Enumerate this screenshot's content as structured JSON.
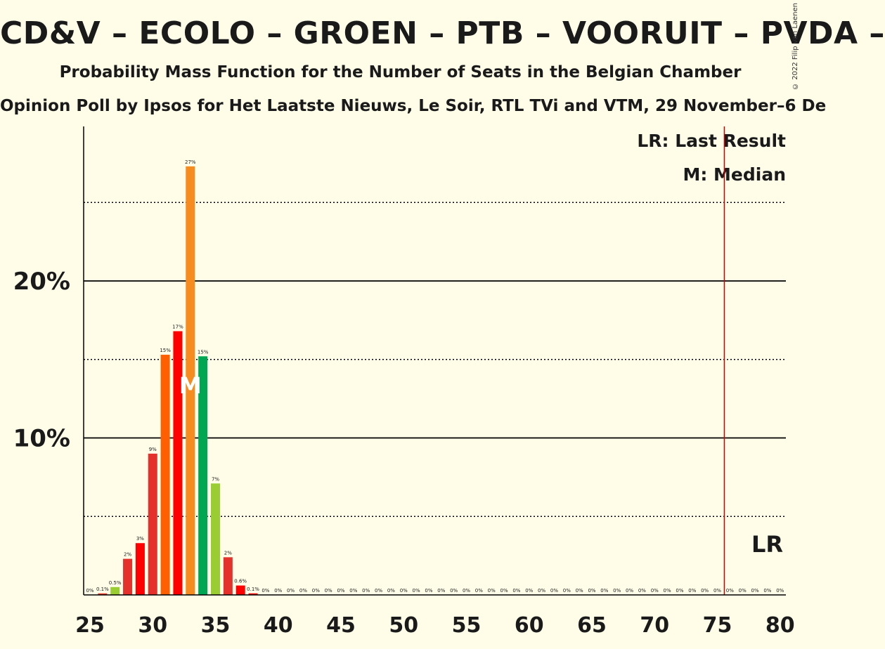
{
  "title": "CD&V – ECOLO – GROEN – PTB – VOORUIT – PVDA –",
  "subtitle": "Probability Mass Function for the Number of Seats in the Belgian Chamber",
  "source": "Opinion Poll by Ipsos for Het Laatste Nieuws, Le Soir, RTL TVi and VTM, 29 November–6 De",
  "copyright": "© 2022 Filip van Laenen",
  "legend": {
    "last_result": "LR: Last Result",
    "median": "M: Median"
  },
  "markers": {
    "median_letter": "M",
    "last_result_letter": "LR"
  },
  "chart_data": {
    "type": "bar",
    "xlim": [
      25,
      80
    ],
    "ylim": [
      0,
      30
    ],
    "y_ticks": [
      {
        "value": 10,
        "label": "10%"
      },
      {
        "value": 20,
        "label": "20%"
      }
    ],
    "y_dotted": [
      5,
      15,
      25
    ],
    "x_ticks": [
      25,
      30,
      35,
      40,
      45,
      50,
      55,
      60,
      65,
      70,
      75,
      80
    ],
    "median": 33,
    "last_result": 76,
    "bars": [
      {
        "x": 25,
        "value": 0,
        "label": "0%",
        "color": "#ef3b2c"
      },
      {
        "x": 26,
        "value": 0.1,
        "label": "0.1%",
        "color": "#ef3b2c"
      },
      {
        "x": 27,
        "value": 0.5,
        "label": "0.5%",
        "color": "#9ACD32"
      },
      {
        "x": 28,
        "value": 2.3,
        "label": "2%",
        "color": "#E4312B"
      },
      {
        "x": 29,
        "value": 3.3,
        "label": "3%",
        "color": "#FF0000"
      },
      {
        "x": 30,
        "value": 9.0,
        "label": "9%",
        "color": "#E4312B"
      },
      {
        "x": 31,
        "value": 15.3,
        "label": "15%",
        "color": "#FF5F00"
      },
      {
        "x": 32,
        "value": 16.8,
        "label": "17%",
        "color": "#FF0000"
      },
      {
        "x": 33,
        "value": 27.3,
        "label": "27%",
        "color": "#F68B1F"
      },
      {
        "x": 34,
        "value": 15.2,
        "label": "15%",
        "color": "#00A651"
      },
      {
        "x": 35,
        "value": 7.1,
        "label": "7%",
        "color": "#9ACD32"
      },
      {
        "x": 36,
        "value": 2.4,
        "label": "2%",
        "color": "#E4312B"
      },
      {
        "x": 37,
        "value": 0.6,
        "label": "0.6%",
        "color": "#FF0000"
      },
      {
        "x": 38,
        "value": 0.1,
        "label": "0.1%",
        "color": "#FF0000"
      },
      {
        "x": 39,
        "value": 0,
        "label": "0%",
        "color": "#FF0000"
      },
      {
        "x": 40,
        "value": 0,
        "label": "0%",
        "color": "#FF0000"
      },
      {
        "x": 41,
        "value": 0,
        "label": "0%",
        "color": "#FF0000"
      },
      {
        "x": 42,
        "value": 0,
        "label": "0%",
        "color": "#FF0000"
      },
      {
        "x": 43,
        "value": 0,
        "label": "0%",
        "color": "#FF0000"
      },
      {
        "x": 44,
        "value": 0,
        "label": "0%",
        "color": "#FF0000"
      },
      {
        "x": 45,
        "value": 0,
        "label": "0%",
        "color": "#FF0000"
      },
      {
        "x": 46,
        "value": 0,
        "label": "0%",
        "color": "#FF0000"
      },
      {
        "x": 47,
        "value": 0,
        "label": "0%",
        "color": "#FF0000"
      },
      {
        "x": 48,
        "value": 0,
        "label": "0%",
        "color": "#FF0000"
      },
      {
        "x": 49,
        "value": 0,
        "label": "0%",
        "color": "#FF0000"
      },
      {
        "x": 50,
        "value": 0,
        "label": "0%",
        "color": "#FF0000"
      },
      {
        "x": 51,
        "value": 0,
        "label": "0%",
        "color": "#FF0000"
      },
      {
        "x": 52,
        "value": 0,
        "label": "0%",
        "color": "#FF0000"
      },
      {
        "x": 53,
        "value": 0,
        "label": "0%",
        "color": "#FF0000"
      },
      {
        "x": 54,
        "value": 0,
        "label": "0%",
        "color": "#FF0000"
      },
      {
        "x": 55,
        "value": 0,
        "label": "0%",
        "color": "#FF0000"
      },
      {
        "x": 56,
        "value": 0,
        "label": "0%",
        "color": "#FF0000"
      },
      {
        "x": 57,
        "value": 0,
        "label": "0%",
        "color": "#FF0000"
      },
      {
        "x": 58,
        "value": 0,
        "label": "0%",
        "color": "#FF0000"
      },
      {
        "x": 59,
        "value": 0,
        "label": "0%",
        "color": "#FF0000"
      },
      {
        "x": 60,
        "value": 0,
        "label": "0%",
        "color": "#FF0000"
      },
      {
        "x": 61,
        "value": 0,
        "label": "0%",
        "color": "#FF0000"
      },
      {
        "x": 62,
        "value": 0,
        "label": "0%",
        "color": "#FF0000"
      },
      {
        "x": 63,
        "value": 0,
        "label": "0%",
        "color": "#FF0000"
      },
      {
        "x": 64,
        "value": 0,
        "label": "0%",
        "color": "#FF0000"
      },
      {
        "x": 65,
        "value": 0,
        "label": "0%",
        "color": "#FF0000"
      },
      {
        "x": 66,
        "value": 0,
        "label": "0%",
        "color": "#FF0000"
      },
      {
        "x": 67,
        "value": 0,
        "label": "0%",
        "color": "#FF0000"
      },
      {
        "x": 68,
        "value": 0,
        "label": "0%",
        "color": "#FF0000"
      },
      {
        "x": 69,
        "value": 0,
        "label": "0%",
        "color": "#FF0000"
      },
      {
        "x": 70,
        "value": 0,
        "label": "0%",
        "color": "#FF0000"
      },
      {
        "x": 71,
        "value": 0,
        "label": "0%",
        "color": "#FF0000"
      },
      {
        "x": 72,
        "value": 0,
        "label": "0%",
        "color": "#FF0000"
      },
      {
        "x": 73,
        "value": 0,
        "label": "0%",
        "color": "#FF0000"
      },
      {
        "x": 74,
        "value": 0,
        "label": "0%",
        "color": "#FF0000"
      },
      {
        "x": 75,
        "value": 0,
        "label": "0%",
        "color": "#FF0000"
      },
      {
        "x": 76,
        "value": 0,
        "label": "0%",
        "color": "#FF0000"
      },
      {
        "x": 77,
        "value": 0,
        "label": "0%",
        "color": "#FF0000"
      },
      {
        "x": 78,
        "value": 0,
        "label": "0%",
        "color": "#FF0000"
      },
      {
        "x": 79,
        "value": 0,
        "label": "0%",
        "color": "#FF0000"
      },
      {
        "x": 80,
        "value": 0,
        "label": "0%",
        "color": "#FF0000"
      }
    ]
  }
}
